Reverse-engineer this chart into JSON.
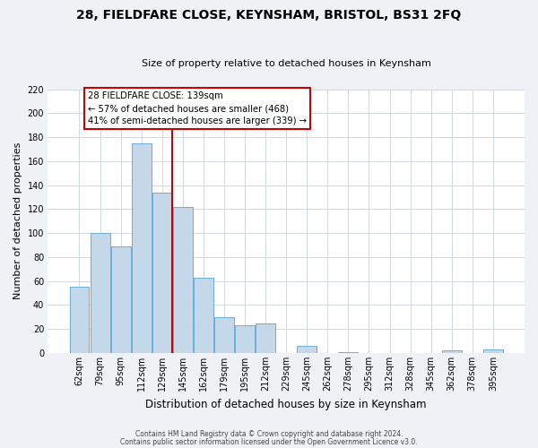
{
  "title": "28, FIELDFARE CLOSE, KEYNSHAM, BRISTOL, BS31 2FQ",
  "subtitle": "Size of property relative to detached houses in Keynsham",
  "xlabel": "Distribution of detached houses by size in Keynsham",
  "ylabel": "Number of detached properties",
  "categories": [
    "62sqm",
    "79sqm",
    "95sqm",
    "112sqm",
    "129sqm",
    "145sqm",
    "162sqm",
    "179sqm",
    "195sqm",
    "212sqm",
    "229sqm",
    "245sqm",
    "262sqm",
    "278sqm",
    "295sqm",
    "312sqm",
    "328sqm",
    "345sqm",
    "362sqm",
    "378sqm",
    "395sqm"
  ],
  "values": [
    55,
    100,
    89,
    175,
    134,
    122,
    63,
    30,
    23,
    25,
    0,
    6,
    0,
    1,
    0,
    0,
    0,
    0,
    2,
    0,
    3
  ],
  "bar_color": "#c5d8ea",
  "bar_edge_color": "#6aaed6",
  "vline_color": "#cc0000",
  "vline_x_index": 5,
  "annotation_text_line1": "28 FIELDFARE CLOSE: 139sqm",
  "annotation_text_line2": "← 57% of detached houses are smaller (468)",
  "annotation_text_line3": "41% of semi-detached houses are larger (339) →",
  "annotation_box_edge_color": "#cc0000",
  "ylim": [
    0,
    220
  ],
  "yticks": [
    0,
    20,
    40,
    60,
    80,
    100,
    120,
    140,
    160,
    180,
    200,
    220
  ],
  "footer1": "Contains HM Land Registry data © Crown copyright and database right 2024.",
  "footer2": "Contains public sector information licensed under the Open Government Licence v3.0.",
  "background_color": "#eef2f7",
  "plot_background_color": "#ffffff",
  "grid_color": "#d0d8e4",
  "title_fontsize": 10,
  "subtitle_fontsize": 8,
  "ylabel_fontsize": 8,
  "xlabel_fontsize": 8.5,
  "tick_fontsize": 7,
  "footer_fontsize": 5.5
}
